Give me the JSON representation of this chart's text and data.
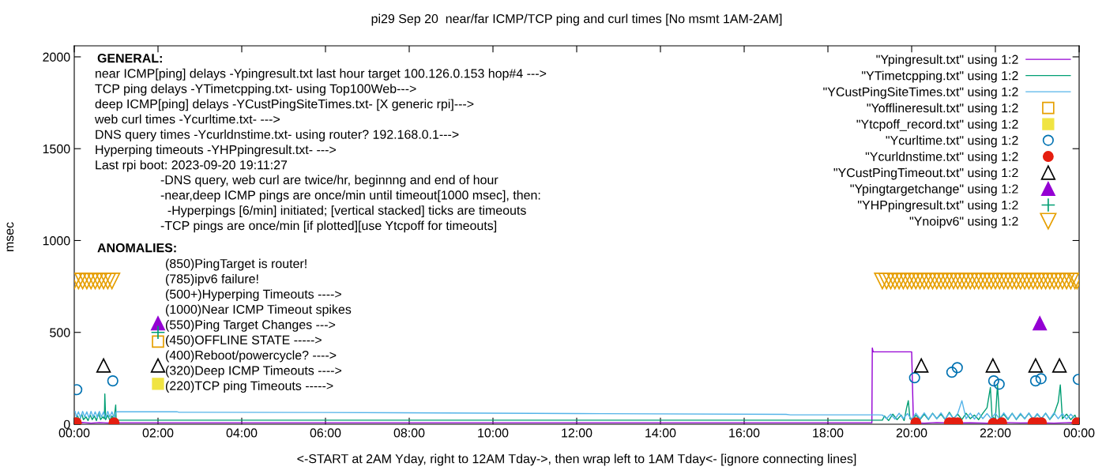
{
  "chart_data": {
    "type": "line",
    "title": "pi29 Sep 20  near/far ICMP/TCP ping and curl times [No msmt 1AM-2AM]",
    "xlabel": "<-START at 2AM Yday, right to 12AM Tday->, then wrap left to 1AM Tday<- [ignore connecting lines]",
    "ylabel": "msec",
    "xlim": [
      0,
      24
    ],
    "xticks": [
      {
        "value": 0,
        "label": "00:00"
      },
      {
        "value": 2,
        "label": "02:00"
      },
      {
        "value": 4,
        "label": "04:00"
      },
      {
        "value": 6,
        "label": "06:00"
      },
      {
        "value": 8,
        "label": "08:00"
      },
      {
        "value": 10,
        "label": "10:00"
      },
      {
        "value": 12,
        "label": "12:00"
      },
      {
        "value": 14,
        "label": "14:00"
      },
      {
        "value": 16,
        "label": "16:00"
      },
      {
        "value": 18,
        "label": "18:00"
      },
      {
        "value": 20,
        "label": "20:00"
      },
      {
        "value": 22,
        "label": "22:00"
      },
      {
        "value": 24,
        "label": "00:00"
      }
    ],
    "ylim": [
      0,
      2060
    ],
    "yticks": [
      0,
      500,
      1000,
      1500,
      2000
    ],
    "grid": false,
    "legend": "top right",
    "annotations": [
      "GENERAL:",
      "near ICMP[ping] delays -Ypingresult.txt last hour target 100.126.0.153 hop#4 --->",
      "TCP ping delays -YTimetcpping.txt- using Top100Web--->",
      "deep ICMP[ping] delays -YCustPingSiteTimes.txt- [X generic rpi]--->",
      "web curl times -Ycurltime.txt- --->",
      "DNS query times -Ycurldnstime.txt- using router? 192.168.0.1--->",
      "Hyperping timeouts -YHPpingresult.txt- --->",
      "Last rpi boot: 2023-09-20 19:11:27",
      "-DNS query, web curl are twice/hr, beginnng and end of hour",
      "-near,deep ICMP pings are once/min until timeout[1000 msec], then:",
      "  -Hyperpings [6/min] initiated; [vertical stacked] ticks are timeouts",
      "-TCP pings are once/min [if plotted][use Ytcpoff for timeouts]",
      "ANOMALIES:",
      "(850)PingTarget is router!",
      "(785)ipv6 failure!",
      "(500+)Hyperping Timeouts ---->",
      "(1000)Near ICMP Timeout spikes",
      "(550)Ping Target Changes --->",
      "(450)OFFLINE STATE ----->",
      "(400)Reboot/powercycle? ---->",
      "(320)Deep ICMP Timeouts ---->",
      "(220)TCP ping Timeouts ----->"
    ],
    "series": [
      {
        "name": "\"Ypingresult.txt\" using 1:2",
        "color": "#9400d3",
        "x": [
          0.02,
          0.2,
          0.4,
          0.6,
          0.8,
          1.0,
          19.05,
          19.06,
          19.08,
          20.0,
          20.04,
          20.06,
          20.3,
          20.6,
          21.0,
          21.4,
          21.8,
          22.2,
          22.6,
          23.0,
          23.4,
          23.8,
          23.95
        ],
        "values": [
          8,
          10,
          6,
          9,
          7,
          8,
          8,
          415,
          394,
          394,
          30,
          8,
          6,
          9,
          7,
          8,
          6,
          9,
          7,
          8,
          6,
          9,
          8
        ]
      },
      {
        "name": "\"YTimetcpping.txt\" using 1:2",
        "color": "#009e73",
        "x": [
          0.02,
          0.08,
          0.12,
          0.18,
          0.22,
          0.28,
          0.33,
          0.38,
          0.43,
          0.48,
          0.53,
          0.58,
          0.63,
          0.68,
          0.72,
          0.73,
          0.75,
          0.8,
          0.85,
          0.9,
          0.95,
          0.99,
          1.0,
          19.3,
          19.35,
          19.45,
          19.55,
          19.65,
          19.75,
          19.82,
          19.88,
          19.92,
          19.96,
          20.02,
          20.1,
          20.2,
          20.3,
          20.4,
          20.5,
          20.6,
          20.7,
          20.8,
          20.9,
          21.0,
          21.1,
          21.2,
          21.3,
          21.4,
          21.5,
          21.6,
          21.7,
          21.8,
          21.88,
          21.92,
          22.0,
          22.05,
          22.1,
          22.2,
          22.3,
          22.4,
          22.5,
          22.6,
          22.7,
          22.8,
          22.9,
          23.0,
          23.1,
          23.2,
          23.3,
          23.4,
          23.5,
          23.55,
          23.6,
          23.7,
          23.8,
          23.9,
          23.95
        ],
        "values": [
          30,
          45,
          20,
          55,
          25,
          40,
          20,
          50,
          25,
          45,
          20,
          60,
          25,
          40,
          30,
          165,
          25,
          50,
          20,
          45,
          25,
          105,
          22,
          22,
          45,
          20,
          55,
          25,
          50,
          20,
          90,
          128,
          30,
          20,
          50,
          25,
          55,
          25,
          60,
          30,
          55,
          25,
          65,
          30,
          55,
          25,
          60,
          30,
          50,
          25,
          60,
          90,
          200,
          40,
          30,
          215,
          30,
          55,
          25,
          60,
          25,
          55,
          30,
          60,
          25,
          55,
          30,
          60,
          25,
          55,
          120,
          214,
          30,
          55,
          25,
          50,
          20
        ]
      },
      {
        "name": "\"YCustPingSiteTimes.txt\" using 1:2",
        "color": "#56b4e9",
        "x": [
          0.02,
          0.05,
          0.1,
          0.15,
          0.2,
          0.25,
          0.3,
          0.35,
          0.4,
          0.45,
          0.5,
          0.55,
          0.6,
          0.65,
          0.7,
          0.75,
          0.8,
          0.85,
          0.9,
          0.95,
          1.0,
          2.45,
          2.5,
          6.0,
          12.0,
          17.0,
          17.1,
          19.2,
          19.3,
          19.4,
          19.5,
          19.6,
          19.7,
          19.8,
          19.9,
          20.0,
          20.1,
          20.2,
          20.3,
          20.4,
          20.5,
          20.6,
          20.7,
          20.8,
          20.9,
          21.0,
          21.1,
          21.2,
          21.3,
          21.4,
          21.5,
          21.6,
          21.7,
          21.8,
          21.9,
          22.0,
          22.1,
          22.2,
          22.3,
          22.4,
          22.5,
          22.6,
          22.7,
          22.8,
          22.9,
          23.0,
          23.1,
          23.2,
          23.3,
          23.4,
          23.5,
          23.6,
          23.7,
          23.8,
          23.9
        ],
        "values": [
          70,
          40,
          68,
          35,
          70,
          40,
          68,
          35,
          70,
          40,
          68,
          35,
          70,
          40,
          68,
          35,
          70,
          40,
          68,
          35,
          68,
          68,
          65,
          64,
          58,
          54,
          51,
          51,
          50,
          30,
          55,
          28,
          60,
          30,
          58,
          25,
          60,
          30,
          62,
          28,
          58,
          30,
          62,
          28,
          60,
          30,
          58,
          128,
          30,
          60,
          28,
          62,
          30,
          58,
          30,
          60,
          28,
          62,
          30,
          58,
          28,
          60,
          30,
          62,
          28,
          58,
          30,
          60,
          28,
          62,
          30,
          58,
          28,
          55,
          30
        ]
      },
      {
        "name": "\"Yofflineresult.txt\" using 1:2",
        "type": "scatter",
        "marker": "square_open",
        "color": "#e69f00",
        "x": [
          2.0
        ],
        "values": [
          450
        ]
      },
      {
        "name": "\"Ytcpoff_record.txt\" using 1:2",
        "type": "scatter",
        "marker": "square",
        "color": "#f0e442",
        "x": [
          2.0
        ],
        "values": [
          220
        ]
      },
      {
        "name": "\"Ycurltime.txt\" using 1:2",
        "type": "scatter",
        "marker": "circle_open",
        "color": "#0072b2",
        "x": [
          0.06,
          0.92,
          20.07,
          20.96,
          21.09,
          21.96,
          22.09,
          22.96,
          23.09,
          23.98
        ],
        "values": [
          188,
          236,
          253,
          283,
          308,
          236,
          218,
          236,
          248,
          244
        ]
      },
      {
        "name": "\"Ycurldnstime.txt\" using 1:2",
        "type": "scatter",
        "marker": "circle",
        "color": "#e51e10",
        "x": [
          0.05,
          0.95,
          20.1,
          20.9,
          21.0,
          21.1,
          21.95,
          22.15,
          22.9,
          23.0,
          23.1,
          23.95
        ],
        "values": [
          8,
          8,
          8,
          8,
          8,
          8,
          5,
          8,
          8,
          8,
          8,
          8
        ]
      },
      {
        "name": "\"YCustPingTimeout.txt\" using 1:2",
        "type": "scatter",
        "marker": "triangle_open",
        "color": "#000000",
        "x": [
          0.7,
          2.0,
          20.23,
          21.94,
          22.96,
          23.53
        ],
        "values": [
          320,
          320,
          320,
          320,
          320,
          320
        ]
      },
      {
        "name": "\"Ypingtargetchange\" using 1:2",
        "type": "scatter",
        "marker": "triangle",
        "color": "#9400d3",
        "x": [
          2.0,
          23.06
        ],
        "values": [
          550,
          550
        ]
      },
      {
        "name": "\"YHPpingresult.txt\" using 1:2",
        "type": "scatter",
        "marker": "cross",
        "color": "#009e73",
        "x": [
          2.0
        ],
        "values": [
          500
        ]
      },
      {
        "name": "\"Ynoipv6\" using 1:2",
        "type": "scatter",
        "marker": "triangle_down_open",
        "color": "#e69f00",
        "x": [
          0.0,
          0.1,
          0.2,
          0.3,
          0.4,
          0.5,
          0.6,
          0.7,
          0.8,
          0.9,
          19.3,
          19.4,
          19.5,
          19.6,
          19.7,
          19.8,
          19.9,
          20.0,
          20.1,
          20.2,
          20.3,
          20.4,
          20.5,
          20.6,
          20.7,
          20.8,
          20.9,
          21.0,
          21.1,
          21.2,
          21.3,
          21.4,
          21.5,
          21.6,
          21.7,
          21.8,
          21.9,
          22.0,
          22.1,
          22.2,
          22.3,
          22.4,
          22.5,
          22.6,
          22.7,
          22.8,
          22.9,
          23.0,
          23.1,
          23.2,
          23.3,
          23.4,
          23.5,
          23.6,
          23.7,
          23.8,
          23.9,
          23.95
        ],
        "values": [
          780,
          780,
          780,
          780,
          780,
          780,
          780,
          780,
          780,
          780,
          780,
          780,
          780,
          780,
          780,
          780,
          780,
          780,
          780,
          780,
          780,
          780,
          780,
          780,
          780,
          780,
          780,
          780,
          780,
          780,
          780,
          780,
          780,
          780,
          780,
          780,
          780,
          780,
          780,
          780,
          780,
          780,
          780,
          780,
          780,
          780,
          780,
          780,
          780,
          780,
          780,
          780,
          780,
          780,
          780,
          780,
          780,
          780
        ]
      }
    ]
  }
}
